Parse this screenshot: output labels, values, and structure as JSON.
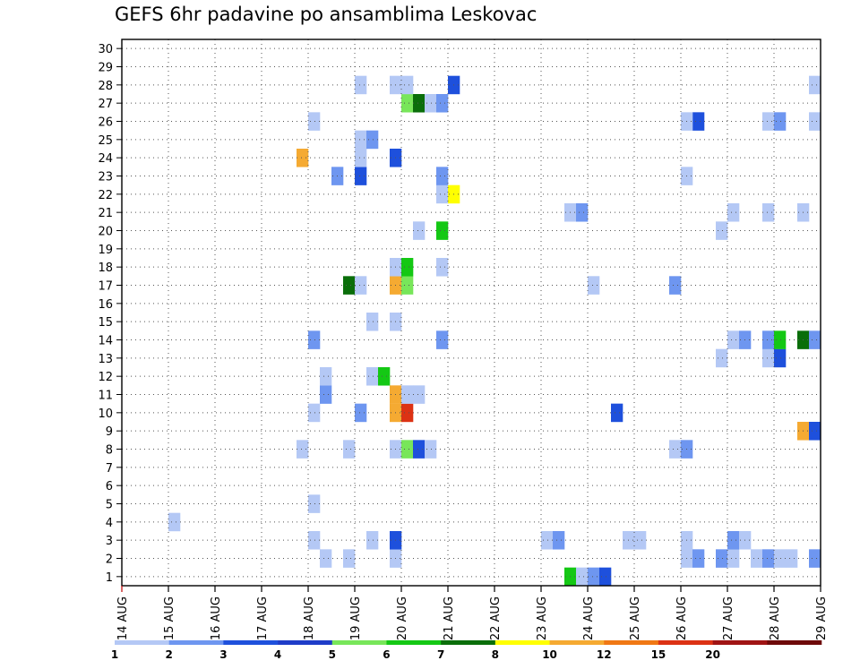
{
  "chart_data": {
    "type": "heatmap",
    "title": "GEFS 6hr padavine po ansamblima Leskovac",
    "x_tick_labels": [
      "14 AUG",
      "15 AUG",
      "16 AUG",
      "17 AUG",
      "18 AUG",
      "19 AUG",
      "20 AUG",
      "21 AUG",
      "22 AUG",
      "23 AUG",
      "24 AUG",
      "25 AUG",
      "26 AUG",
      "27 AUG",
      "28 AUG",
      "29 AUG"
    ],
    "y_tick_labels": [
      "1",
      "2",
      "3",
      "4",
      "5",
      "6",
      "7",
      "8",
      "9",
      "10",
      "11",
      "12",
      "13",
      "14",
      "15",
      "16",
      "17",
      "18",
      "19",
      "20",
      "21",
      "22",
      "23",
      "24",
      "25",
      "26",
      "27",
      "28",
      "29",
      "30"
    ],
    "x_range_days": [
      0,
      15
    ],
    "y_range": [
      0.5,
      30.5
    ],
    "grid": true,
    "colorbar": {
      "labels": [
        "1",
        "2",
        "3",
        "4",
        "5",
        "6",
        "7",
        "8",
        "10",
        "12",
        "15",
        "20"
      ],
      "colors": [
        "#b4c8f5",
        "#6e96f0",
        "#1e50dc",
        "#1e3cc8",
        "#78e65a",
        "#14c814",
        "#0a6e0a",
        "#ffff00",
        "#f5aa32",
        "#f07814",
        "#dc3214",
        "#a01414",
        "#6e0a0a"
      ]
    },
    "cells": [
      {
        "member": 1,
        "step": 38,
        "cls": 6
      },
      {
        "member": 1,
        "step": 39,
        "cls": 1
      },
      {
        "member": 1,
        "step": 40,
        "cls": 2
      },
      {
        "member": 1,
        "step": 41,
        "cls": 3
      },
      {
        "member": 2,
        "step": 17,
        "cls": 1
      },
      {
        "member": 2,
        "step": 19,
        "cls": 1
      },
      {
        "member": 2,
        "step": 23,
        "cls": 1
      },
      {
        "member": 2,
        "step": 48,
        "cls": 1
      },
      {
        "member": 2,
        "step": 49,
        "cls": 2
      },
      {
        "member": 2,
        "step": 51,
        "cls": 2
      },
      {
        "member": 2,
        "step": 52,
        "cls": 1
      },
      {
        "member": 2,
        "step": 54,
        "cls": 1
      },
      {
        "member": 2,
        "step": 55,
        "cls": 2
      },
      {
        "member": 2,
        "step": 56,
        "cls": 1
      },
      {
        "member": 2,
        "step": 57,
        "cls": 1
      },
      {
        "member": 2,
        "step": 59,
        "cls": 2
      },
      {
        "member": 3,
        "step": 16,
        "cls": 1
      },
      {
        "member": 3,
        "step": 21,
        "cls": 1
      },
      {
        "member": 3,
        "step": 23,
        "cls": 3
      },
      {
        "member": 3,
        "step": 36,
        "cls": 1
      },
      {
        "member": 3,
        "step": 37,
        "cls": 2
      },
      {
        "member": 3,
        "step": 43,
        "cls": 1
      },
      {
        "member": 3,
        "step": 44,
        "cls": 1
      },
      {
        "member": 3,
        "step": 48,
        "cls": 1
      },
      {
        "member": 3,
        "step": 52,
        "cls": 2
      },
      {
        "member": 3,
        "step": 53,
        "cls": 1
      },
      {
        "member": 4,
        "step": 4,
        "cls": 1
      },
      {
        "member": 5,
        "step": 16,
        "cls": 1
      },
      {
        "member": 8,
        "step": 15,
        "cls": 1
      },
      {
        "member": 8,
        "step": 19,
        "cls": 1
      },
      {
        "member": 8,
        "step": 23,
        "cls": 1
      },
      {
        "member": 8,
        "step": 24,
        "cls": 5
      },
      {
        "member": 8,
        "step": 25,
        "cls": 3
      },
      {
        "member": 8,
        "step": 26,
        "cls": 1
      },
      {
        "member": 8,
        "step": 47,
        "cls": 1
      },
      {
        "member": 8,
        "step": 48,
        "cls": 2
      },
      {
        "member": 9,
        "step": 58,
        "cls": 9
      },
      {
        "member": 9,
        "step": 59,
        "cls": 3
      },
      {
        "member": 10,
        "step": 16,
        "cls": 1
      },
      {
        "member": 10,
        "step": 20,
        "cls": 2
      },
      {
        "member": 10,
        "step": 23,
        "cls": 9
      },
      {
        "member": 10,
        "step": 24,
        "cls": 11
      },
      {
        "member": 10,
        "step": 42,
        "cls": 3
      },
      {
        "member": 11,
        "step": 17,
        "cls": 2
      },
      {
        "member": 11,
        "step": 23,
        "cls": 9
      },
      {
        "member": 11,
        "step": 24,
        "cls": 1
      },
      {
        "member": 11,
        "step": 25,
        "cls": 1
      },
      {
        "member": 12,
        "step": 17,
        "cls": 1
      },
      {
        "member": 12,
        "step": 21,
        "cls": 1
      },
      {
        "member": 12,
        "step": 22,
        "cls": 6
      },
      {
        "member": 13,
        "step": 51,
        "cls": 1
      },
      {
        "member": 13,
        "step": 55,
        "cls": 1
      },
      {
        "member": 13,
        "step": 56,
        "cls": 3
      },
      {
        "member": 14,
        "step": 16,
        "cls": 2
      },
      {
        "member": 14,
        "step": 27,
        "cls": 2
      },
      {
        "member": 14,
        "step": 52,
        "cls": 1
      },
      {
        "member": 14,
        "step": 53,
        "cls": 2
      },
      {
        "member": 14,
        "step": 55,
        "cls": 2
      },
      {
        "member": 14,
        "step": 56,
        "cls": 6
      },
      {
        "member": 14,
        "step": 58,
        "cls": 7
      },
      {
        "member": 14,
        "step": 59,
        "cls": 2
      },
      {
        "member": 15,
        "step": 21,
        "cls": 1
      },
      {
        "member": 15,
        "step": 23,
        "cls": 1
      },
      {
        "member": 17,
        "step": 19,
        "cls": 7
      },
      {
        "member": 17,
        "step": 20,
        "cls": 1
      },
      {
        "member": 17,
        "step": 23,
        "cls": 9
      },
      {
        "member": 17,
        "step": 24,
        "cls": 5
      },
      {
        "member": 17,
        "step": 40,
        "cls": 1
      },
      {
        "member": 17,
        "step": 47,
        "cls": 2
      },
      {
        "member": 18,
        "step": 23,
        "cls": 1
      },
      {
        "member": 18,
        "step": 24,
        "cls": 6
      },
      {
        "member": 18,
        "step": 27,
        "cls": 1
      },
      {
        "member": 20,
        "step": 25,
        "cls": 1
      },
      {
        "member": 20,
        "step": 27,
        "cls": 6
      },
      {
        "member": 20,
        "step": 51,
        "cls": 1
      },
      {
        "member": 21,
        "step": 38,
        "cls": 1
      },
      {
        "member": 21,
        "step": 39,
        "cls": 2
      },
      {
        "member": 21,
        "step": 52,
        "cls": 1
      },
      {
        "member": 21,
        "step": 55,
        "cls": 1
      },
      {
        "member": 21,
        "step": 58,
        "cls": 1
      },
      {
        "member": 22,
        "step": 27,
        "cls": 1
      },
      {
        "member": 22,
        "step": 28,
        "cls": 8
      },
      {
        "member": 23,
        "step": 18,
        "cls": 2
      },
      {
        "member": 23,
        "step": 20,
        "cls": 3
      },
      {
        "member": 23,
        "step": 27,
        "cls": 2
      },
      {
        "member": 23,
        "step": 48,
        "cls": 1
      },
      {
        "member": 24,
        "step": 15,
        "cls": 9
      },
      {
        "member": 24,
        "step": 20,
        "cls": 1
      },
      {
        "member": 24,
        "step": 23,
        "cls": 3
      },
      {
        "member": 25,
        "step": 20,
        "cls": 1
      },
      {
        "member": 25,
        "step": 21,
        "cls": 2
      },
      {
        "member": 26,
        "step": 16,
        "cls": 1
      },
      {
        "member": 26,
        "step": 49,
        "cls": 3
      },
      {
        "member": 26,
        "step": 48,
        "cls": 1
      },
      {
        "member": 26,
        "step": 55,
        "cls": 1
      },
      {
        "member": 26,
        "step": 56,
        "cls": 2
      },
      {
        "member": 26,
        "step": 59,
        "cls": 1
      },
      {
        "member": 27,
        "step": 24,
        "cls": 5
      },
      {
        "member": 27,
        "step": 25,
        "cls": 7
      },
      {
        "member": 27,
        "step": 26,
        "cls": 1
      },
      {
        "member": 27,
        "step": 27,
        "cls": 2
      },
      {
        "member": 28,
        "step": 20,
        "cls": 1
      },
      {
        "member": 28,
        "step": 23,
        "cls": 1
      },
      {
        "member": 28,
        "step": 24,
        "cls": 1
      },
      {
        "member": 28,
        "step": 28,
        "cls": 3
      },
      {
        "member": 28,
        "step": 59,
        "cls": 1
      }
    ]
  }
}
